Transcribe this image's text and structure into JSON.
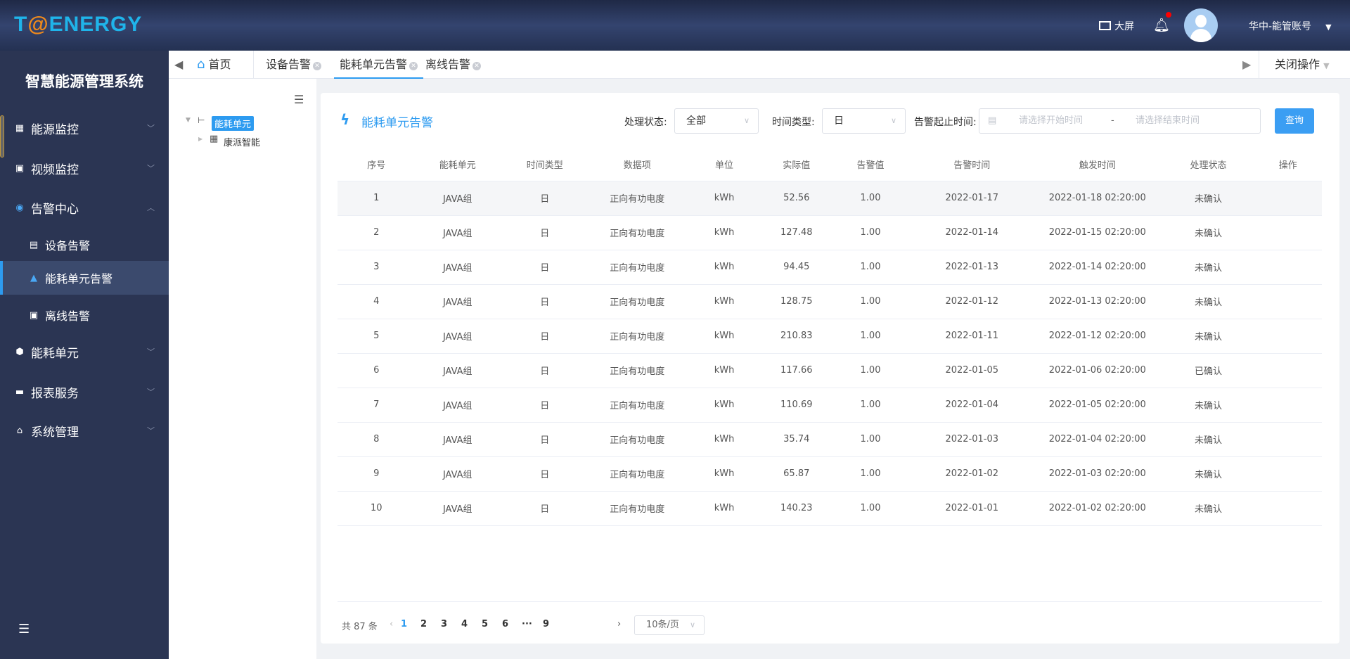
{
  "header": {
    "logo": "T@ENERGY",
    "logo_parts": [
      "T",
      "@",
      "ENERGY"
    ],
    "bigscreen": "大屏",
    "account": "华中-能管账号",
    "notification_dot_color": "#ff0000"
  },
  "sidebar": {
    "title": "智慧能源管理系统",
    "items": [
      {
        "label": "能源监控",
        "icon": "grid-icon"
      },
      {
        "label": "视频监控",
        "icon": "video-icon"
      },
      {
        "label": "告警中心",
        "icon": "alarm-icon",
        "expanded": true
      },
      {
        "label": "设备告警",
        "icon": "device-icon"
      },
      {
        "label": "能耗单元告警",
        "icon": "warning-icon",
        "active": true
      },
      {
        "label": "离线告警",
        "icon": "monitor-icon"
      },
      {
        "label": "能耗单元",
        "icon": "plus-shield-icon"
      },
      {
        "label": "报表服务",
        "icon": "report-icon"
      },
      {
        "label": "系统管理",
        "icon": "home-icon"
      }
    ]
  },
  "tabs": {
    "home": "首页",
    "items": [
      "设备告警",
      "能耗单元告警",
      "离线告警"
    ],
    "active": 1,
    "close_ops": "关闭操作"
  },
  "tree": {
    "root": "能耗单元",
    "child": "康派智能"
  },
  "card": {
    "title": "能耗单元告警",
    "filters": {
      "status_label": "处理状态:",
      "status_value": "全部",
      "time_type_label": "时间类型:",
      "time_type_value": "日",
      "range_label": "告警起止时间:",
      "start_placeholder": "请选择开始时间",
      "sep": "-",
      "end_placeholder": "请选择结束时间",
      "query": "查询"
    },
    "columns": [
      "序号",
      "能耗单元",
      "时间类型",
      "数据项",
      "单位",
      "实际值",
      "告警值",
      "告警时间",
      "触发时间",
      "处理状态",
      "操作"
    ],
    "rows": [
      [
        "1",
        "JAVA组",
        "日",
        "正向有功电度",
        "kWh",
        "52.56",
        "1.00",
        "2022-01-17",
        "2022-01-18 02:20:00",
        "未确认",
        ""
      ],
      [
        "2",
        "JAVA组",
        "日",
        "正向有功电度",
        "kWh",
        "127.48",
        "1.00",
        "2022-01-14",
        "2022-01-15 02:20:00",
        "未确认",
        ""
      ],
      [
        "3",
        "JAVA组",
        "日",
        "正向有功电度",
        "kWh",
        "94.45",
        "1.00",
        "2022-01-13",
        "2022-01-14 02:20:00",
        "未确认",
        ""
      ],
      [
        "4",
        "JAVA组",
        "日",
        "正向有功电度",
        "kWh",
        "128.75",
        "1.00",
        "2022-01-12",
        "2022-01-13 02:20:00",
        "未确认",
        ""
      ],
      [
        "5",
        "JAVA组",
        "日",
        "正向有功电度",
        "kWh",
        "210.83",
        "1.00",
        "2022-01-11",
        "2022-01-12 02:20:00",
        "未确认",
        ""
      ],
      [
        "6",
        "JAVA组",
        "日",
        "正向有功电度",
        "kWh",
        "117.66",
        "1.00",
        "2022-01-05",
        "2022-01-06 02:20:00",
        "已确认",
        ""
      ],
      [
        "7",
        "JAVA组",
        "日",
        "正向有功电度",
        "kWh",
        "110.69",
        "1.00",
        "2022-01-04",
        "2022-01-05 02:20:00",
        "未确认",
        ""
      ],
      [
        "8",
        "JAVA组",
        "日",
        "正向有功电度",
        "kWh",
        "35.74",
        "1.00",
        "2022-01-03",
        "2022-01-04 02:20:00",
        "未确认",
        ""
      ],
      [
        "9",
        "JAVA组",
        "日",
        "正向有功电度",
        "kWh",
        "65.87",
        "1.00",
        "2022-01-02",
        "2022-01-03 02:20:00",
        "未确认",
        ""
      ],
      [
        "10",
        "JAVA组",
        "日",
        "正向有功电度",
        "kWh",
        "140.23",
        "1.00",
        "2022-01-01",
        "2022-01-02 02:20:00",
        "未确认",
        ""
      ]
    ],
    "pagination": {
      "total": "共 87 条",
      "pages": [
        "1",
        "2",
        "3",
        "4",
        "5",
        "6",
        "···",
        "9"
      ],
      "current": "1",
      "page_size": "10条/页"
    }
  },
  "colors": {
    "accent": "#2d9bf0",
    "header": "#2b3553"
  }
}
